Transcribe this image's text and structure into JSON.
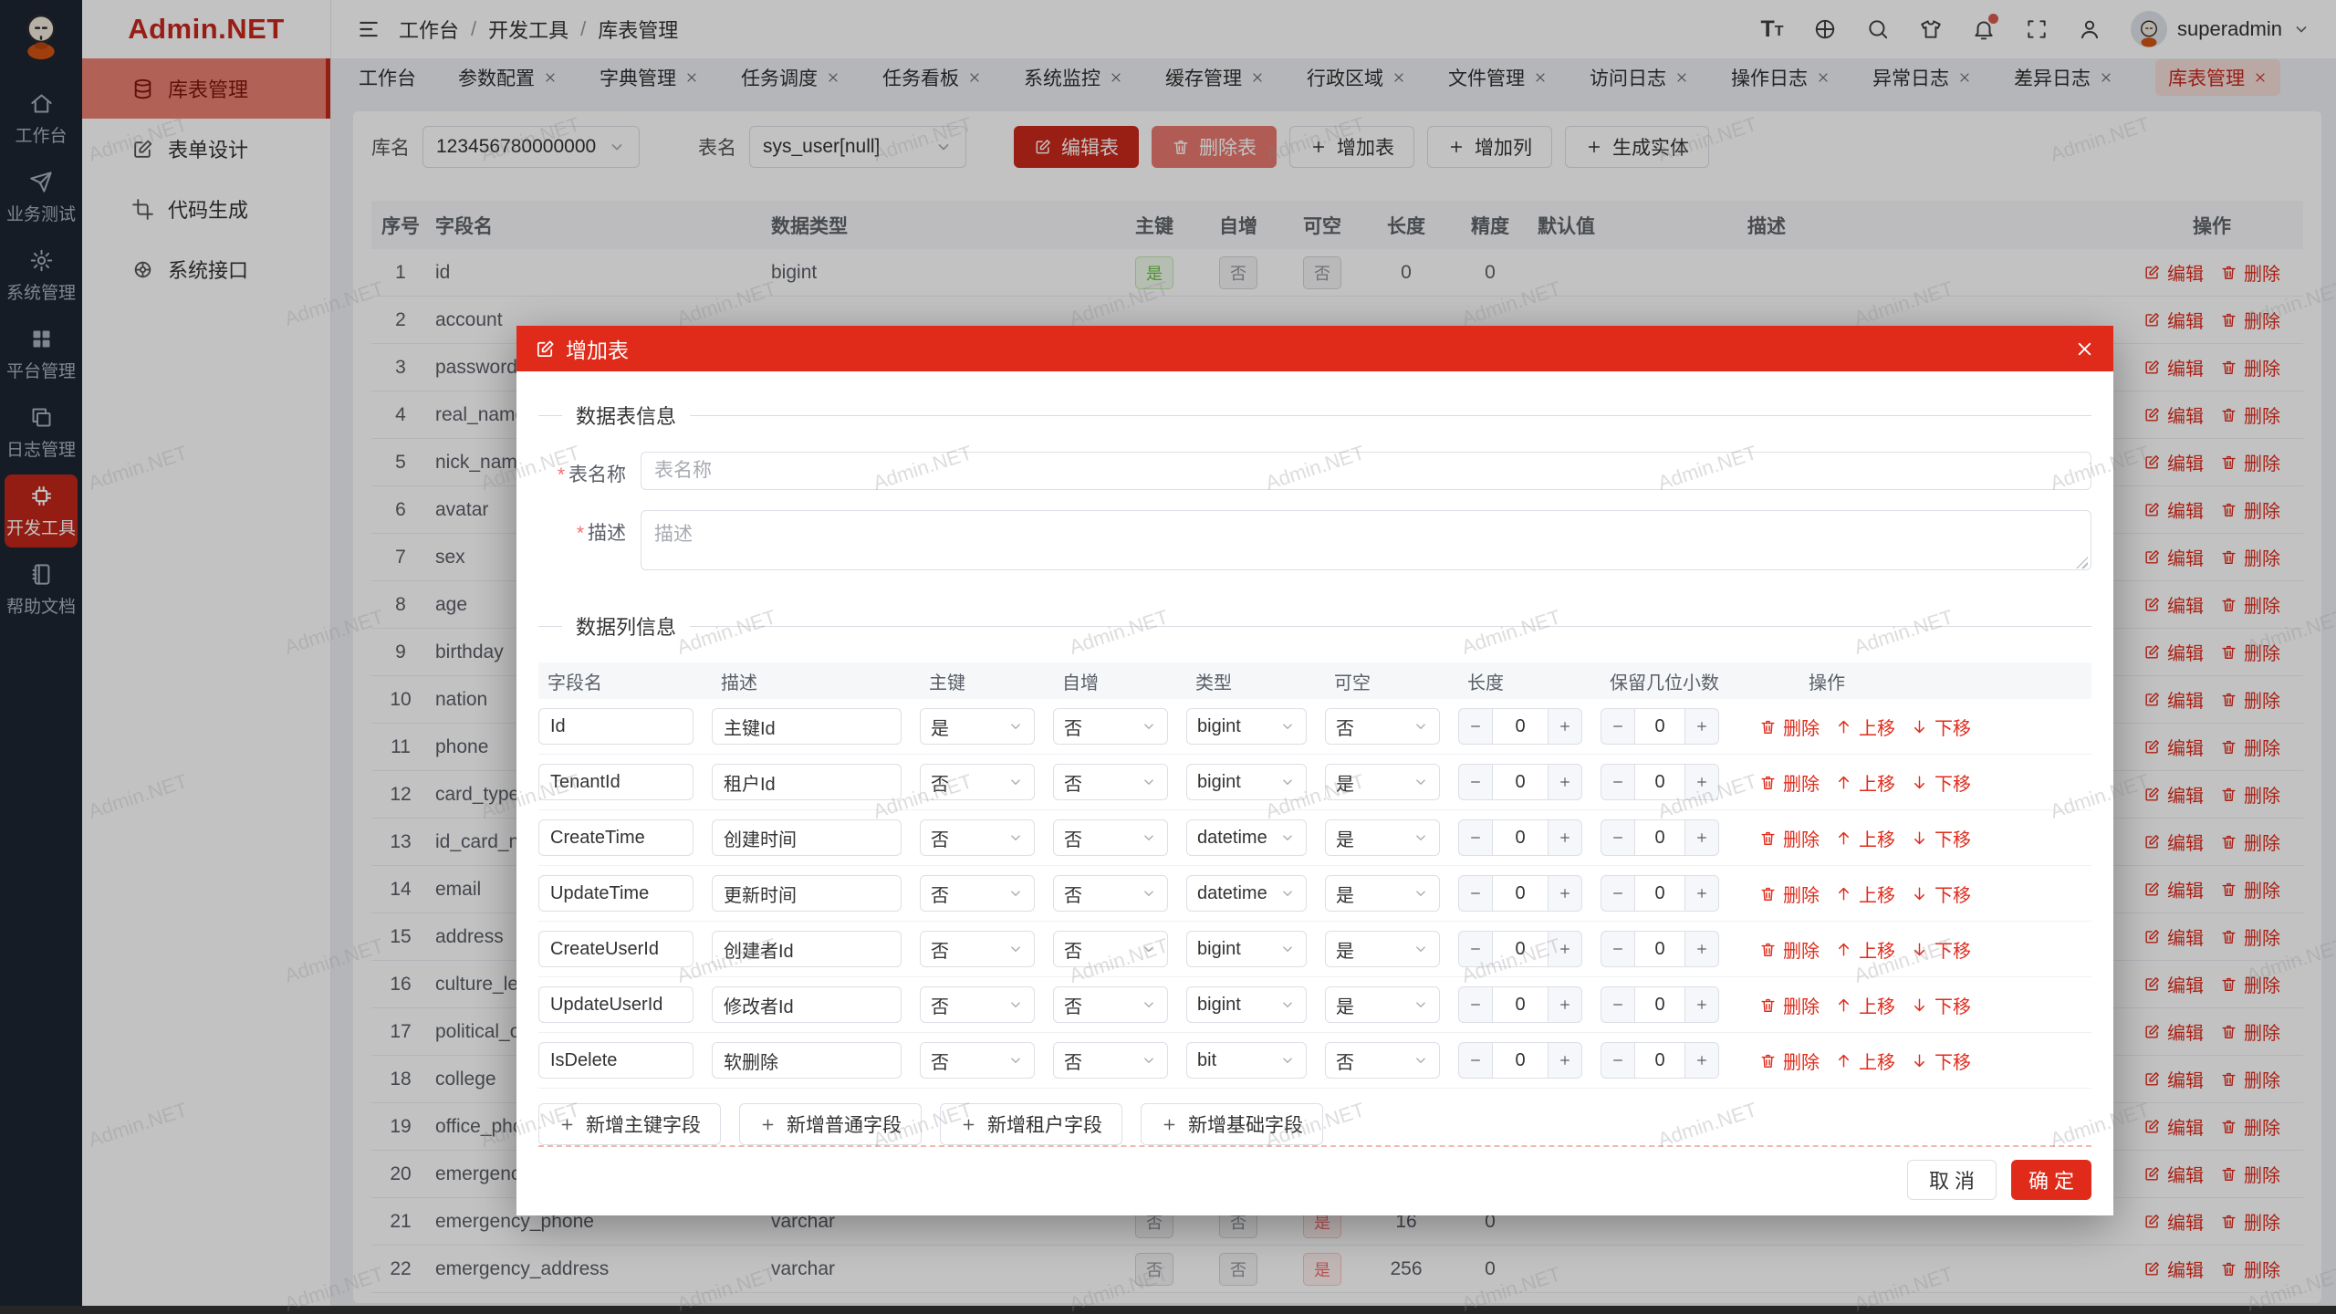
{
  "app": {
    "name": "Admin.NET"
  },
  "watermark": "Admin.NET",
  "colors": {
    "accent": "#E02B1B",
    "rail_bg": "#1E2633",
    "tag_green": "#67C23A",
    "tag_gray": "#909399",
    "tag_red": "#F56C6C"
  },
  "rail": {
    "items": [
      {
        "label": "工作台",
        "icon": "home",
        "active": false
      },
      {
        "label": "业务测试",
        "icon": "send",
        "active": false
      },
      {
        "label": "系统管理",
        "icon": "gear",
        "active": false
      },
      {
        "label": "平台管理",
        "icon": "grid",
        "active": false
      },
      {
        "label": "日志管理",
        "icon": "logs",
        "active": false
      },
      {
        "label": "开发工具",
        "icon": "chip",
        "active": true
      },
      {
        "label": "帮助文档",
        "icon": "book",
        "active": false
      }
    ]
  },
  "sidebar": {
    "items": [
      {
        "label": "库表管理",
        "icon": "database",
        "active": true
      },
      {
        "label": "表单设计",
        "icon": "edit",
        "active": false
      },
      {
        "label": "代码生成",
        "icon": "crop",
        "active": false
      },
      {
        "label": "系统接口",
        "icon": "api",
        "active": false
      }
    ]
  },
  "header": {
    "breadcrumb": [
      "工作台",
      "开发工具",
      "库表管理"
    ],
    "icons": [
      "font-size",
      "language",
      "search",
      "theme",
      "notification",
      "fullscreen",
      "profile"
    ],
    "user": "superadmin"
  },
  "tabs": [
    {
      "label": "工作台",
      "closable": false,
      "active": false
    },
    {
      "label": "参数配置",
      "closable": true,
      "active": false
    },
    {
      "label": "字典管理",
      "closable": true,
      "active": false
    },
    {
      "label": "任务调度",
      "closable": true,
      "active": false
    },
    {
      "label": "任务看板",
      "closable": true,
      "active": false
    },
    {
      "label": "系统监控",
      "closable": true,
      "active": false
    },
    {
      "label": "缓存管理",
      "closable": true,
      "active": false
    },
    {
      "label": "行政区域",
      "closable": true,
      "active": false
    },
    {
      "label": "文件管理",
      "closable": true,
      "active": false
    },
    {
      "label": "访问日志",
      "closable": true,
      "active": false
    },
    {
      "label": "操作日志",
      "closable": true,
      "active": false
    },
    {
      "label": "异常日志",
      "closable": true,
      "active": false
    },
    {
      "label": "差异日志",
      "closable": true,
      "active": false
    },
    {
      "label": "库表管理",
      "closable": true,
      "active": true
    }
  ],
  "toolbar": {
    "db_label": "库名",
    "db_value": "123456780000000",
    "table_label": "表名",
    "table_value": "sys_user[null]",
    "edit": "编辑表",
    "delete": "删除表",
    "add_table": "增加表",
    "add_column": "增加列",
    "gen_entity": "生成实体"
  },
  "table": {
    "columns": [
      "序号",
      "字段名",
      "数据类型",
      "主键",
      "自增",
      "可空",
      "长度",
      "精度",
      "默认值",
      "描述",
      "操作"
    ],
    "ops": {
      "edit": "编辑",
      "delete": "删除"
    },
    "rows": [
      {
        "num": "1",
        "name": "id",
        "type": "bigint",
        "pk": "是",
        "inc": "否",
        "nul": "否",
        "len": "0",
        "prec": "0"
      },
      {
        "num": "2",
        "name": "account"
      },
      {
        "num": "3",
        "name": "password"
      },
      {
        "num": "4",
        "name": "real_name"
      },
      {
        "num": "5",
        "name": "nick_name"
      },
      {
        "num": "6",
        "name": "avatar"
      },
      {
        "num": "7",
        "name": "sex"
      },
      {
        "num": "8",
        "name": "age"
      },
      {
        "num": "9",
        "name": "birthday"
      },
      {
        "num": "10",
        "name": "nation"
      },
      {
        "num": "11",
        "name": "phone"
      },
      {
        "num": "12",
        "name": "card_type"
      },
      {
        "num": "13",
        "name": "id_card_nu"
      },
      {
        "num": "14",
        "name": "email"
      },
      {
        "num": "15",
        "name": "address"
      },
      {
        "num": "16",
        "name": "culture_lev"
      },
      {
        "num": "17",
        "name": "political_ou"
      },
      {
        "num": "18",
        "name": "college"
      },
      {
        "num": "19",
        "name": "office_pho"
      },
      {
        "num": "20",
        "name": "emergency"
      },
      {
        "num": "21",
        "name": "emergency_phone",
        "type": "varchar",
        "pk": "否",
        "inc": "否",
        "nul": "是",
        "len": "16",
        "prec": "0"
      },
      {
        "num": "22",
        "name": "emergency_address",
        "type": "varchar",
        "pk": "否",
        "inc": "否",
        "nul": "是",
        "len": "256",
        "prec": "0"
      }
    ]
  },
  "modal": {
    "title": "增加表",
    "table_info_title": "数据表信息",
    "column_info_title": "数据列信息",
    "name_label": "表名称",
    "name_placeholder": "表名称",
    "desc_label": "描述",
    "desc_placeholder": "描述",
    "headers": [
      "字段名",
      "描述",
      "主键",
      "自增",
      "类型",
      "可空",
      "长度",
      "保留几位小数",
      "操作"
    ],
    "row_actions": {
      "del": "删除",
      "up": "上移",
      "down": "下移"
    },
    "rows": [
      {
        "field": "Id",
        "desc": "主键Id",
        "pk": "是",
        "inc": "否",
        "type": "bigint",
        "nul": "否",
        "len": "0",
        "dec": "0"
      },
      {
        "field": "TenantId",
        "desc": "租户Id",
        "pk": "否",
        "inc": "否",
        "type": "bigint",
        "nul": "是",
        "len": "0",
        "dec": "0"
      },
      {
        "field": "CreateTime",
        "desc": "创建时间",
        "pk": "否",
        "inc": "否",
        "type": "datetime",
        "nul": "是",
        "len": "0",
        "dec": "0"
      },
      {
        "field": "UpdateTime",
        "desc": "更新时间",
        "pk": "否",
        "inc": "否",
        "type": "datetime",
        "nul": "是",
        "len": "0",
        "dec": "0"
      },
      {
        "field": "CreateUserId",
        "desc": "创建者Id",
        "pk": "否",
        "inc": "否",
        "type": "bigint",
        "nul": "是",
        "len": "0",
        "dec": "0"
      },
      {
        "field": "UpdateUserId",
        "desc": "修改者Id",
        "pk": "否",
        "inc": "否",
        "type": "bigint",
        "nul": "是",
        "len": "0",
        "dec": "0"
      },
      {
        "field": "IsDelete",
        "desc": "软删除",
        "pk": "否",
        "inc": "否",
        "type": "bit",
        "nul": "否",
        "len": "0",
        "dec": "0"
      }
    ],
    "add_buttons": [
      "新增主键字段",
      "新增普通字段",
      "新增租户字段",
      "新增基础字段"
    ],
    "cancel": "取 消",
    "ok": "确 定"
  }
}
